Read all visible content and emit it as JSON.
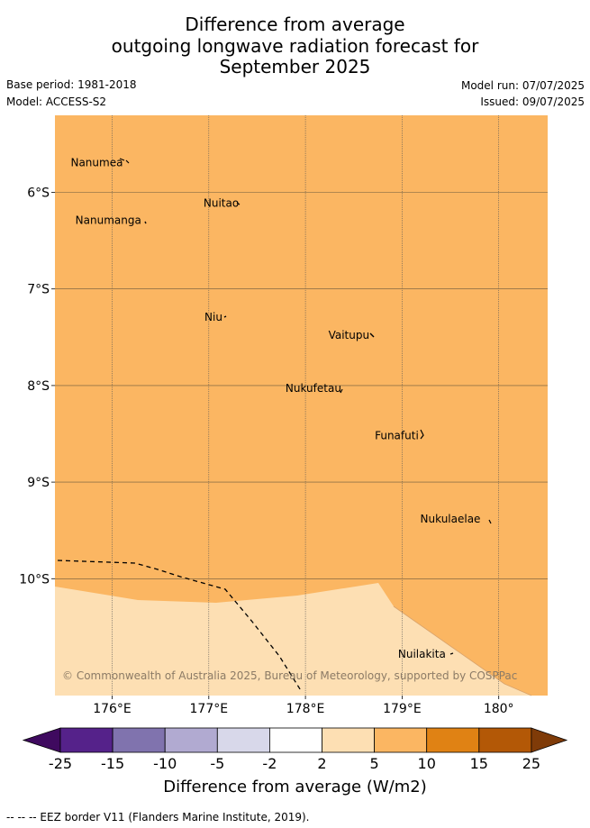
{
  "header": {
    "title_lines": [
      "Difference from average",
      "outgoing longwave radiation forecast for",
      "September 2025"
    ],
    "base_period": "Base period: 1981-2018",
    "model": "Model: ACCESS-S2",
    "model_run": "Model run: 07/07/2025",
    "issued": "Issued: 09/07/2025"
  },
  "map": {
    "lon_labels": [
      "176°E",
      "177°E",
      "178°E",
      "179°E",
      "180°"
    ],
    "lat_labels": [
      "6°S",
      "7°S",
      "8°S",
      "9°S",
      "10°S"
    ],
    "lon_values": [
      176,
      177,
      178,
      179,
      180
    ],
    "lat_values": [
      -6,
      -7,
      -8,
      -9,
      -10
    ],
    "places": [
      {
        "name": "Nanumea",
        "lon": 176.13,
        "lat": -5.69
      },
      {
        "name": "Nuitao",
        "lon": 177.33,
        "lat": -6.11
      },
      {
        "name": "Nanumanga",
        "lon": 176.32,
        "lat": -6.29
      },
      {
        "name": "Niu",
        "lon": 177.16,
        "lat": -7.29
      },
      {
        "name": "Vaitupu",
        "lon": 178.68,
        "lat": -7.48
      },
      {
        "name": "Nukufetau",
        "lon": 178.39,
        "lat": -8.03
      },
      {
        "name": "Funafuti",
        "lon": 179.19,
        "lat": -8.52
      },
      {
        "name": "Nukulaelae",
        "lon": 179.83,
        "lat": -9.38
      },
      {
        "name": "Nuilakita",
        "lon": 179.47,
        "lat": -10.78
      }
    ],
    "copyright": "© Commonwealth of Australia 2025, Bureau of Meteorology, supported by COSPPac",
    "dominant_category": "5 to 10",
    "secondary_category": "2 to 5",
    "colors": {
      "cat_5_10": "#fbb662",
      "cat_2_5": "#fddfb3",
      "grid": "#555555"
    }
  },
  "colorbar": {
    "title": "Difference from average (W/m2)",
    "tick_labels": [
      "-25",
      "-15",
      "-10",
      "-5",
      "-2",
      "2",
      "5",
      "10",
      "15",
      "25"
    ],
    "colors": [
      "#3f0a5f",
      "#55228a",
      "#8073ae",
      "#b1aad1",
      "#d8d8ea",
      "#ffffff",
      "#fddfb3",
      "#fbb662",
      "#e08214",
      "#b35806",
      "#7f3b08"
    ]
  },
  "footer": {
    "legend_text": "--  --  -- EEZ border V11 (Flanders Marine Institute, 2019)."
  }
}
